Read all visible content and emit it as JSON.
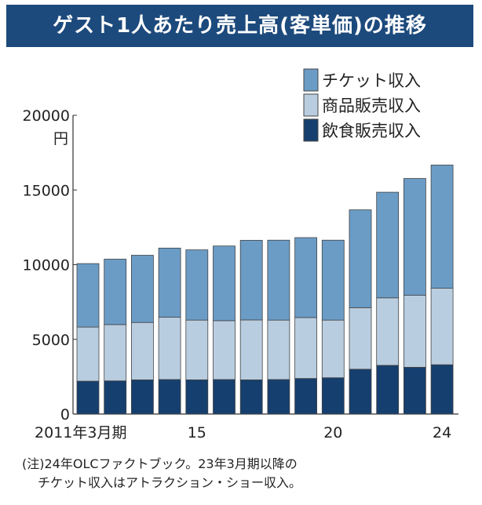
{
  "chart_data": {
    "type": "bar",
    "stacked": true,
    "title": "ゲスト1人あたり売上高(客単価)の推移",
    "ylabel": "円",
    "xlabel": "",
    "ylim": [
      0,
      20000
    ],
    "yticks": [
      0,
      5000,
      10000,
      15000,
      20000
    ],
    "categories": [
      "2011",
      "2012",
      "2013",
      "2014",
      "2015",
      "2016",
      "2017",
      "2018",
      "2019",
      "2020",
      "2021",
      "2022",
      "2023",
      "2024"
    ],
    "x_tick_labels": {
      "2011": "2011年3月期",
      "2015": "15",
      "2020": "20",
      "2024": "24"
    },
    "legend_position": "top-right",
    "grid": false,
    "series": [
      {
        "name": "飲食販売収入",
        "color": "#153f6e",
        "values": [
          2200,
          2220,
          2290,
          2310,
          2290,
          2310,
          2290,
          2310,
          2380,
          2430,
          3000,
          3260,
          3130,
          3300
        ]
      },
      {
        "name": "商品販売収入",
        "color": "#b9cde0",
        "values": [
          3620,
          3770,
          3840,
          4170,
          4000,
          3940,
          4010,
          3980,
          4080,
          3860,
          4120,
          4520,
          4820,
          5120
        ]
      },
      {
        "name": "チケット収入",
        "color": "#6a9cc6",
        "values": [
          4250,
          4380,
          4500,
          4630,
          4700,
          5000,
          5330,
          5350,
          5350,
          5350,
          6550,
          7070,
          7820,
          8250
        ]
      }
    ],
    "legend_order": [
      "チケット収入",
      "商品販売収入",
      "飲食販売収入"
    ]
  },
  "notes": [
    "(注)24年OLCファクトブック。23年3月期以降の",
    "チケット収入はアトラクション・ショー収入。"
  ],
  "title_bg": "#1d4a7c"
}
